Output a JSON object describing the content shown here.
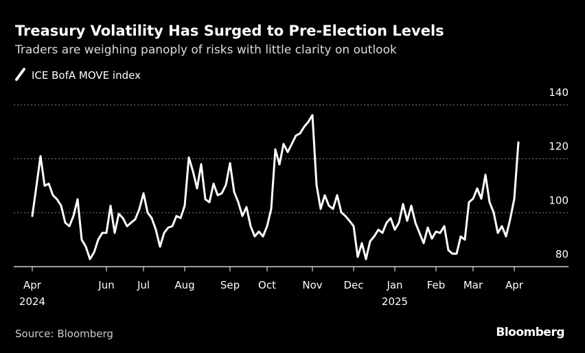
{
  "chart_data": {
    "type": "line",
    "title": "Treasury Volatility Has Surged to Pre-Election Levels",
    "subtitle": "Traders are weighing panoply of risks with little clarity on outlook",
    "source": "Source: Bloomberg",
    "brand": "Bloomberg",
    "categories": [
      "Apr",
      null,
      null,
      null,
      null,
      null,
      null,
      null,
      null,
      null,
      null,
      null,
      null,
      null,
      null,
      null,
      null,
      null,
      "Jun",
      null,
      null,
      null,
      null,
      null,
      null,
      null,
      null,
      "Jul",
      null,
      null,
      null,
      null,
      null,
      null,
      null,
      null,
      null,
      "Aug",
      null,
      null,
      null,
      null,
      null,
      null,
      null,
      null,
      null,
      null,
      "Sep",
      null,
      null,
      null,
      null,
      null,
      null,
      null,
      null,
      "Oct",
      null,
      null,
      null,
      null,
      null,
      null,
      null,
      null,
      null,
      null,
      "Nov",
      null,
      null,
      null,
      null,
      null,
      null,
      null,
      null,
      null,
      "Dec",
      null,
      null,
      null,
      null,
      null,
      null,
      null,
      null,
      null,
      "Jan",
      null,
      null,
      null,
      null,
      null,
      null,
      null,
      null,
      null,
      "Feb",
      null,
      null,
      null,
      null,
      null,
      null,
      null,
      null,
      "Mar",
      null,
      null,
      null,
      null,
      null,
      null,
      null,
      null,
      null,
      "Apr",
      null
    ],
    "category_years": [
      "2024",
      null,
      null,
      null,
      null,
      null,
      null,
      null,
      null,
      null,
      null,
      null,
      null,
      null,
      null,
      null,
      null,
      null,
      null,
      null,
      null,
      null,
      null,
      null,
      null,
      null,
      null,
      null,
      null,
      null,
      null,
      null,
      null,
      null,
      null,
      null,
      null,
      null,
      null,
      null,
      null,
      null,
      null,
      null,
      null,
      null,
      null,
      null,
      null,
      null,
      null,
      null,
      null,
      null,
      null,
      null,
      null,
      null,
      null,
      null,
      null,
      null,
      null,
      null,
      null,
      null,
      null,
      null,
      null,
      null,
      null,
      null,
      null,
      null,
      null,
      null,
      null,
      null,
      null,
      null,
      null,
      null,
      null,
      null,
      null,
      null,
      null,
      null,
      "2025",
      null,
      null,
      null,
      null,
      null,
      null,
      null,
      null,
      null,
      null,
      null,
      null,
      null,
      null,
      null,
      null,
      null,
      null,
      null,
      null,
      null,
      null,
      null,
      null,
      null,
      null,
      null,
      null,
      null,
      null
    ],
    "series": [
      {
        "name": "ICE BofA MOVE index",
        "color": "#ffffff",
        "values": [
          98.8,
          109.8,
          121,
          110,
          110.8,
          106.5,
          105,
          102.6,
          96.3,
          95,
          98.8,
          105,
          90,
          87.4,
          82.8,
          85.3,
          90,
          92.5,
          92.5,
          102.6,
          92.5,
          99.6,
          98,
          95,
          96.3,
          97.6,
          101.4,
          107.2,
          100,
          98,
          93.7,
          87.4,
          92.5,
          94.5,
          95,
          98.8,
          98,
          102.6,
          120.5,
          115.4,
          109,
          118,
          105,
          103.9,
          110.8,
          106.5,
          107.2,
          110.3,
          118.4,
          107.7,
          103.9,
          98.8,
          102.1,
          95,
          91.2,
          93,
          91.2,
          95,
          101.4,
          123.5,
          117.9,
          125.5,
          122.5,
          125.5,
          128.6,
          129.4,
          131.9,
          133.7,
          136.2,
          110.3,
          101.4,
          106.5,
          102.6,
          101.4,
          106.5,
          100.1,
          98.8,
          97,
          95,
          83.6,
          88.7,
          82.8,
          89.4,
          91.2,
          93.7,
          92.5,
          96.3,
          98,
          93.7,
          96.3,
          103.2,
          97,
          102.6,
          96.3,
          92.5,
          88.7,
          94.5,
          90.4,
          93,
          92.5,
          95,
          86.1,
          84.8,
          84.8,
          91.2,
          90,
          103.9,
          105.2,
          109,
          105.2,
          114.1,
          103.9,
          100.1,
          92.5,
          95,
          91.2,
          97.6,
          105.2,
          126.1
        ]
      }
    ],
    "ylim": [
      80,
      140
    ],
    "yticks": [
      80,
      100,
      120,
      140
    ],
    "grid": true
  }
}
